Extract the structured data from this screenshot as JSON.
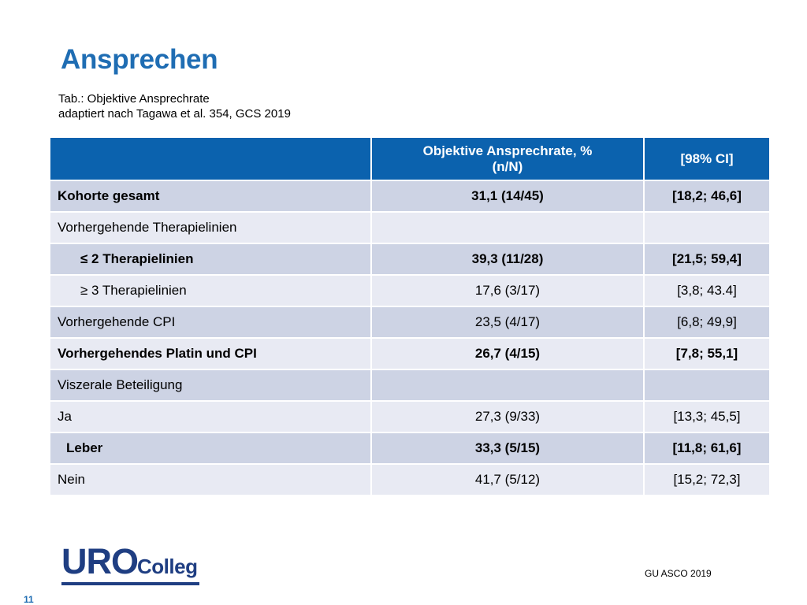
{
  "slide": {
    "title": "Ansprechen",
    "caption_line1": "Tab.: Objektive Ansprechrate",
    "caption_line2": "adaptiert nach Tagawa et al. 354, GCS 2019",
    "source": "GU ASCO 2019",
    "page_number": "11"
  },
  "logo": {
    "word1": "URO",
    "word2": "Colleg"
  },
  "table": {
    "header": {
      "col1": "",
      "col2_line1": "Objektive Ansprechrate, %",
      "col2_line2": "(n/N)",
      "col3": "[98% CI]"
    },
    "rows": [
      {
        "label": "Kohorte gesamt",
        "rate": "31,1 (14/45)",
        "ci": "[18,2; 46,6]"
      },
      {
        "label": "Vorhergehende Therapielinien",
        "rate": "",
        "ci": ""
      },
      {
        "label": "≤ 2 Therapielinien",
        "rate": "39,3 (11/28)",
        "ci": "[21,5; 59,4]"
      },
      {
        "label": "≥ 3 Therapielinien",
        "rate": "17,6 (3/17)",
        "ci": "[3,8; 43.4]"
      },
      {
        "label": "Vorhergehende CPI",
        "rate": "23,5 (4/17)",
        "ci": "[6,8; 49,9]"
      },
      {
        "label": "Vorhergehendes Platin und CPI",
        "rate": "26,7 (4/15)",
        "ci": "[7,8; 55,1]"
      },
      {
        "label": "Viszerale Beteiligung",
        "rate": "",
        "ci": ""
      },
      {
        "label": "Ja",
        "rate": "27,3 (9/33)",
        "ci": "[13,3; 45,5]"
      },
      {
        "label": "Leber",
        "rate": "33,3 (5/15)",
        "ci": "[11,8; 61,6]"
      },
      {
        "label": "Nein",
        "rate": "41,7 (5/12)",
        "ci": "[15,2; 72,3]"
      }
    ]
  },
  "colors": {
    "title": "#1f6db3",
    "header_bg": "#0b62ae",
    "row_dark": "#cdd3e4",
    "row_light": "#e8eaf3",
    "logo": "#1f3e82"
  }
}
